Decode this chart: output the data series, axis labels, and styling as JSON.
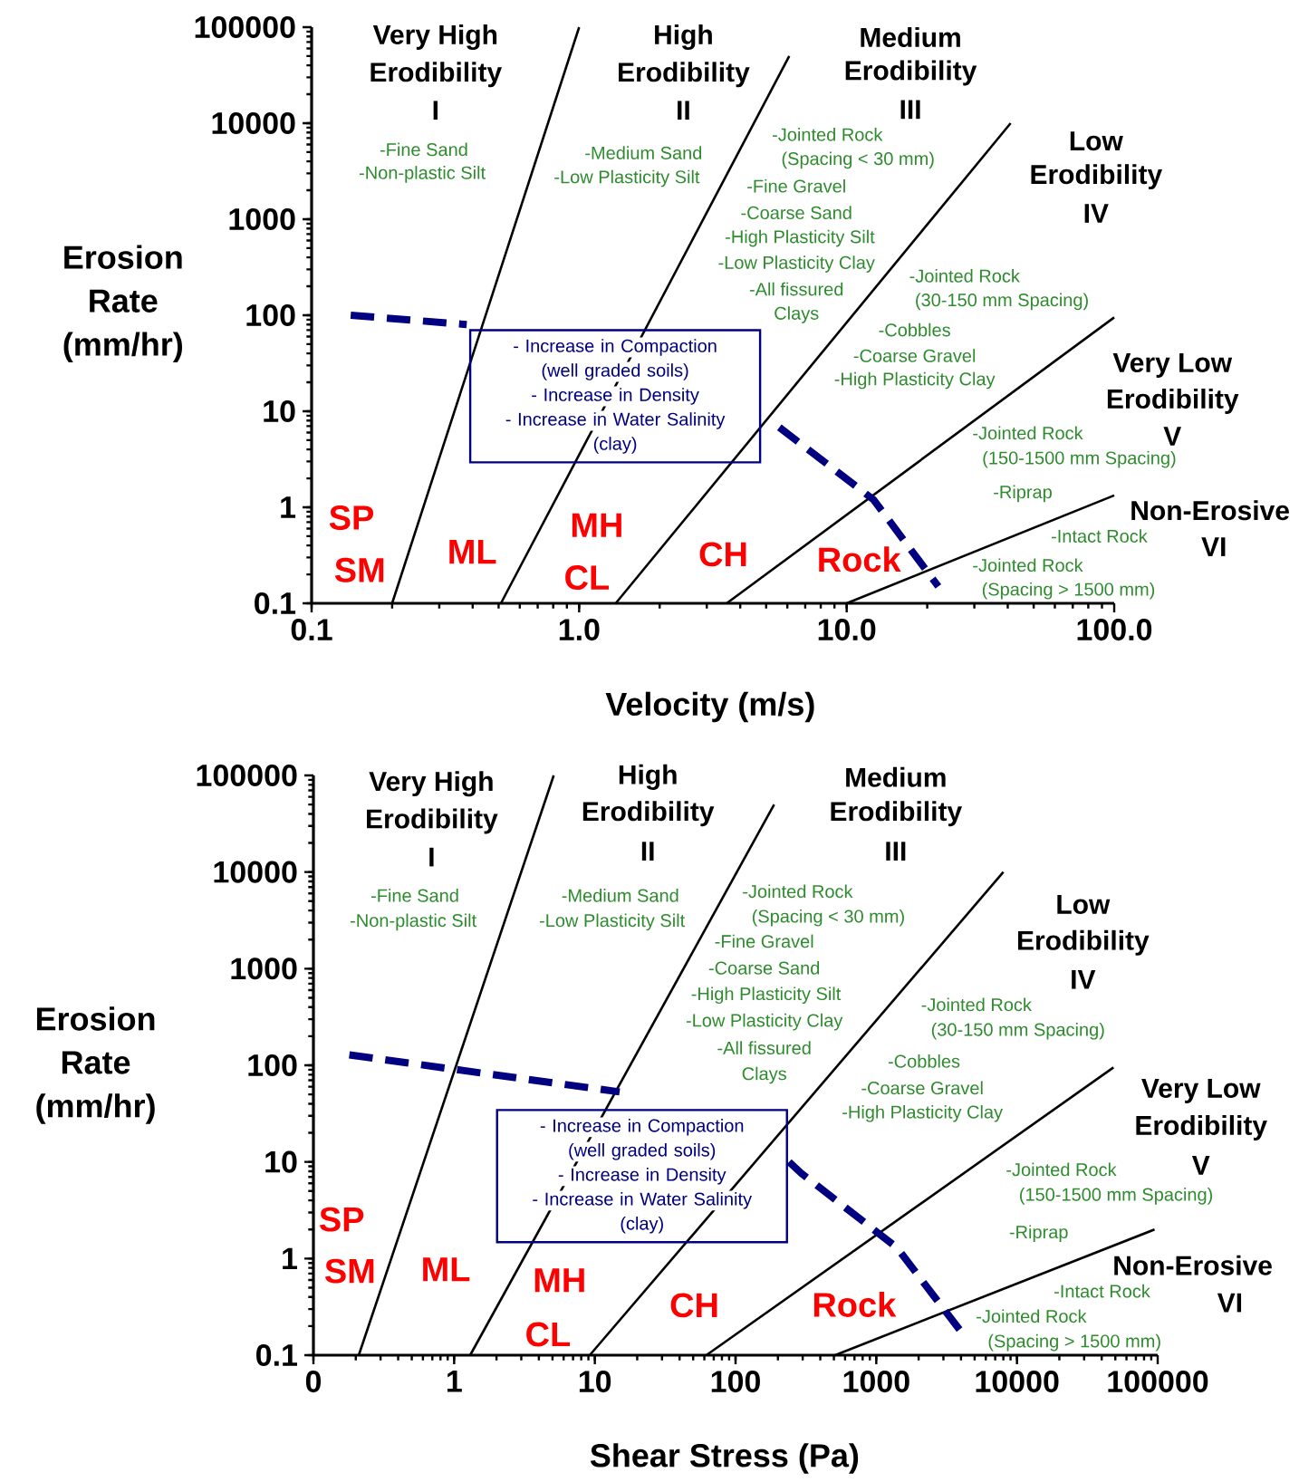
{
  "chart_data": [
    {
      "type": "line",
      "xlabel": "Velocity (m/s)",
      "ylabel": "Erosion Rate (mm/hr)",
      "log": "xy",
      "xlim": [
        0.1,
        100
      ],
      "ylim": [
        0.1,
        100000
      ],
      "xticks": [
        {
          "value": 0.1,
          "label": "0.1"
        },
        {
          "value": 1,
          "label": "1.0"
        },
        {
          "value": 10,
          "label": "10.0"
        },
        {
          "value": 100,
          "label": "100.0"
        }
      ],
      "yticks": [
        {
          "value": 0.1,
          "label": "0.1"
        },
        1,
        10,
        100,
        1000,
        10000,
        100000
      ],
      "series": [
        {
          "color": "#000000",
          "line_style": "solid",
          "x": [
            0.2,
            1.0
          ],
          "values": [
            0.1,
            100000
          ]
        },
        {
          "color": "#000000",
          "line_style": "solid",
          "x": [
            0.51,
            6.1
          ],
          "values": [
            0.1,
            50000
          ]
        },
        {
          "color": "#000000",
          "line_style": "solid",
          "x": [
            1.37,
            41
          ],
          "values": [
            0.1,
            10000
          ]
        },
        {
          "color": "#000000",
          "line_style": "solid",
          "x": [
            3.56,
            100
          ],
          "values": [
            0.1,
            95
          ]
        },
        {
          "color": "#000000",
          "line_style": "solid",
          "x": [
            10,
            100
          ],
          "values": [
            0.1,
            1.33
          ]
        },
        {
          "color": "#000080",
          "line_style": "dashed",
          "x": [
            0.14,
            0.38,
            1.5,
            5.6,
            12.6,
            22
          ],
          "values": [
            100,
            80,
            null,
            6.8,
            1.2,
            0.15
          ]
        }
      ],
      "annotations": [
        "Very High",
        "Erodibility",
        "I",
        "High",
        "Erodibility",
        "II",
        "Medium",
        "Erodibility",
        "III",
        "Low",
        "Erodibility",
        "IV",
        "Very Low",
        "Erodibility",
        "V",
        "Non-Erosive",
        "VI",
        "-Fine Sand",
        "-Non-plastic Silt",
        "-Medium Sand",
        "-Low Plasticity Silt",
        "-Jointed Rock",
        "(Spacing < 30 mm)",
        "-Fine Gravel",
        "-Coarse Sand",
        "-High Plasticity Silt",
        "-Low Plasticity Clay",
        "-All fissured",
        "Clays",
        "-Jointed Rock",
        "(30-150 mm Spacing)",
        "-Cobbles",
        "-Coarse Gravel",
        "-High Plasticity Clay",
        "-Jointed Rock",
        "(150-1500 mm Spacing)",
        "-Riprap",
        "-Intact Rock",
        "-Jointed Rock",
        "(Spacing > 1500 mm)",
        "SP",
        "SM",
        "ML",
        "MH",
        "CL",
        "CH",
        "Rock",
        "- Increase in Compaction",
        "(well graded soils)",
        "- Increase in Density",
        "- Increase in Water Salinity",
        "(clay)"
      ]
    },
    {
      "type": "line",
      "xlabel": "Shear Stress (Pa)",
      "ylabel": "Erosion Rate (mm/hr)",
      "log": "xy",
      "xlim": [
        0.1,
        100000
      ],
      "ylim": [
        0.1,
        100000
      ],
      "xticks": [
        {
          "value": 0.1,
          "label": "0"
        },
        1,
        10,
        100,
        1000,
        10000,
        100000
      ],
      "yticks": [
        {
          "value": 0.1,
          "label": "0.1"
        },
        1,
        10,
        100,
        1000,
        10000,
        100000
      ],
      "series": [
        {
          "color": "#000000",
          "line_style": "solid",
          "x": [
            0.21,
            5.1
          ],
          "values": [
            0.1,
            100000
          ]
        },
        {
          "color": "#000000",
          "line_style": "solid",
          "x": [
            1.3,
            188
          ],
          "values": [
            0.1,
            50000
          ]
        },
        {
          "color": "#000000",
          "line_style": "solid",
          "x": [
            9.2,
            8000
          ],
          "values": [
            0.1,
            10000
          ]
        },
        {
          "color": "#000000",
          "line_style": "solid",
          "x": [
            62,
            48500
          ],
          "values": [
            0.1,
            95
          ]
        },
        {
          "color": "#000000",
          "line_style": "solid",
          "x": [
            510,
            95000
          ],
          "values": [
            0.1,
            2.0
          ]
        },
        {
          "color": "#000080",
          "line_style": "dashed",
          "x": [
            0.18,
            15,
            60,
            240,
            294,
            1400,
            4200
          ],
          "values": [
            128,
            53,
            null,
            10,
            7.6,
            1.3,
            0.16
          ]
        }
      ],
      "annotations": [
        "Very High",
        "Erodibility",
        "I",
        "High",
        "Erodibility",
        "II",
        "Medium",
        "Erodibility",
        "III",
        "Low",
        "Erodibility",
        "IV",
        "Very Low",
        "Erodibility",
        "V",
        "Non-Erosive",
        "VI",
        "-Fine Sand",
        "-Non-plastic Silt",
        "-Medium Sand",
        "-Low Plasticity Silt",
        "-Jointed Rock",
        "(Spacing < 30 mm)",
        "-Fine Gravel",
        "-Coarse Sand",
        "-High Plasticity Silt",
        "-Low Plasticity Clay",
        "-All fissured",
        "Clays",
        "-Jointed Rock",
        "(30-150 mm Spacing)",
        "-Cobbles",
        "-Coarse Gravel",
        "-High Plasticity Clay",
        "-Jointed Rock",
        "(150-1500 mm Spacing)",
        "-Riprap",
        "-Intact Rock",
        "-Jointed Rock",
        "(Spacing > 1500 mm)",
        "SP",
        "SM",
        "ML",
        "MH",
        "CL",
        "CH",
        "Rock",
        "- Increase in Compaction",
        "(well graded soils)",
        "- Increase in Density",
        "- Increase in Water Salinity",
        "(clay)"
      ]
    }
  ]
}
